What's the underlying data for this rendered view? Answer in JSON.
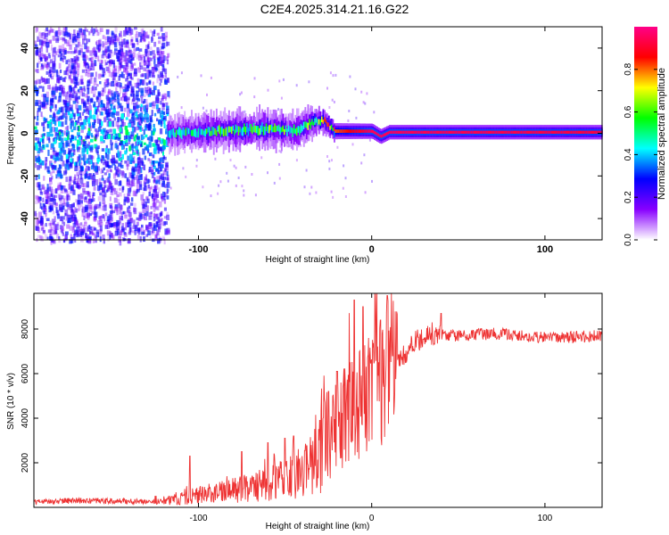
{
  "figure_title": "C2E4.2025.314.21.16.G22",
  "chart_data": [
    {
      "type": "heatmap",
      "title": "C2E4.2025.314.21.16.G22",
      "xlabel": "Height of straight line (km)",
      "ylabel": "Frequency (Hz)",
      "xlim": [
        -195,
        133
      ],
      "ylim": [
        -50,
        50
      ],
      "xticks": [
        -100,
        0,
        100
      ],
      "yticks": [
        -40,
        -20,
        0,
        20,
        40
      ],
      "colorbar": {
        "label": "Normalized spectral amplitude",
        "range": [
          0,
          1
        ],
        "ticks": [
          0.0,
          0.2,
          0.4,
          0.6,
          0.8
        ],
        "colormap": [
          "#ffffff",
          "#8800ff",
          "#0000ff",
          "#00ffff",
          "#00ff00",
          "#ffff00",
          "#ff0000",
          "#ff0088"
        ]
      },
      "structure": {
        "noisy_region_x": [
          -195,
          -118
        ],
        "band_center_hz": [
          [
            -118,
            0
          ],
          [
            -100,
            0.5
          ],
          [
            -80,
            1.5
          ],
          [
            -60,
            2
          ],
          [
            -45,
            1
          ],
          [
            -35,
            5
          ],
          [
            -28,
            6
          ],
          [
            -22,
            1
          ],
          [
            -10,
            1
          ],
          [
            0,
            1
          ],
          [
            5,
            -1.5
          ],
          [
            10,
            0.5
          ],
          [
            133,
            0.5
          ]
        ],
        "band_halfwidth_hz": [
          [
            -118,
            4
          ],
          [
            -70,
            4.5
          ],
          [
            -40,
            4
          ],
          [
            -22,
            2
          ],
          [
            10,
            1.8
          ],
          [
            133,
            1.8
          ]
        ],
        "core_amplitude": [
          [
            -118,
            0.45
          ],
          [
            -90,
            0.5
          ],
          [
            -60,
            0.55
          ],
          [
            -40,
            0.5
          ],
          [
            -22,
            0.8
          ],
          [
            0,
            0.95
          ],
          [
            133,
            0.92
          ]
        ]
      }
    },
    {
      "type": "line",
      "xlabel": "Height of straight line (km)",
      "ylabel": "SNR (10 * v/v)",
      "xlim": [
        -195,
        133
      ],
      "ylim": [
        0,
        9600
      ],
      "xticks": [
        -100,
        0,
        100
      ],
      "yticks": [
        2000,
        4000,
        6000,
        8000
      ],
      "color": "#ee3333",
      "series": [
        {
          "name": "SNR",
          "baseline": [
            [
              -195,
              250
            ],
            [
              -170,
              300
            ],
            [
              -150,
              280
            ],
            [
              -120,
              250
            ],
            [
              -110,
              450
            ],
            [
              -90,
              650
            ],
            [
              -70,
              900
            ],
            [
              -50,
              1250
            ],
            [
              -35,
              1800
            ],
            [
              -25,
              3000
            ],
            [
              -15,
              4000
            ],
            [
              -5,
              4800
            ],
            [
              5,
              5600
            ],
            [
              15,
              6500
            ],
            [
              25,
              7400
            ],
            [
              35,
              7800
            ],
            [
              50,
              7700
            ],
            [
              70,
              7800
            ],
            [
              100,
              7600
            ],
            [
              133,
              7700
            ]
          ],
          "spikes": [
            [
              -105,
              2300
            ],
            [
              -75,
              2500
            ],
            [
              -60,
              2900
            ],
            [
              -50,
              3100
            ],
            [
              -45,
              3200
            ],
            [
              -30,
              3900
            ],
            [
              -25,
              5200
            ],
            [
              -20,
              6100
            ],
            [
              -10,
              9300
            ],
            [
              -5,
              9000
            ],
            [
              5,
              8400
            ],
            [
              9,
              9500
            ],
            [
              12,
              6800
            ],
            [
              40,
              8700
            ]
          ]
        }
      ]
    }
  ]
}
